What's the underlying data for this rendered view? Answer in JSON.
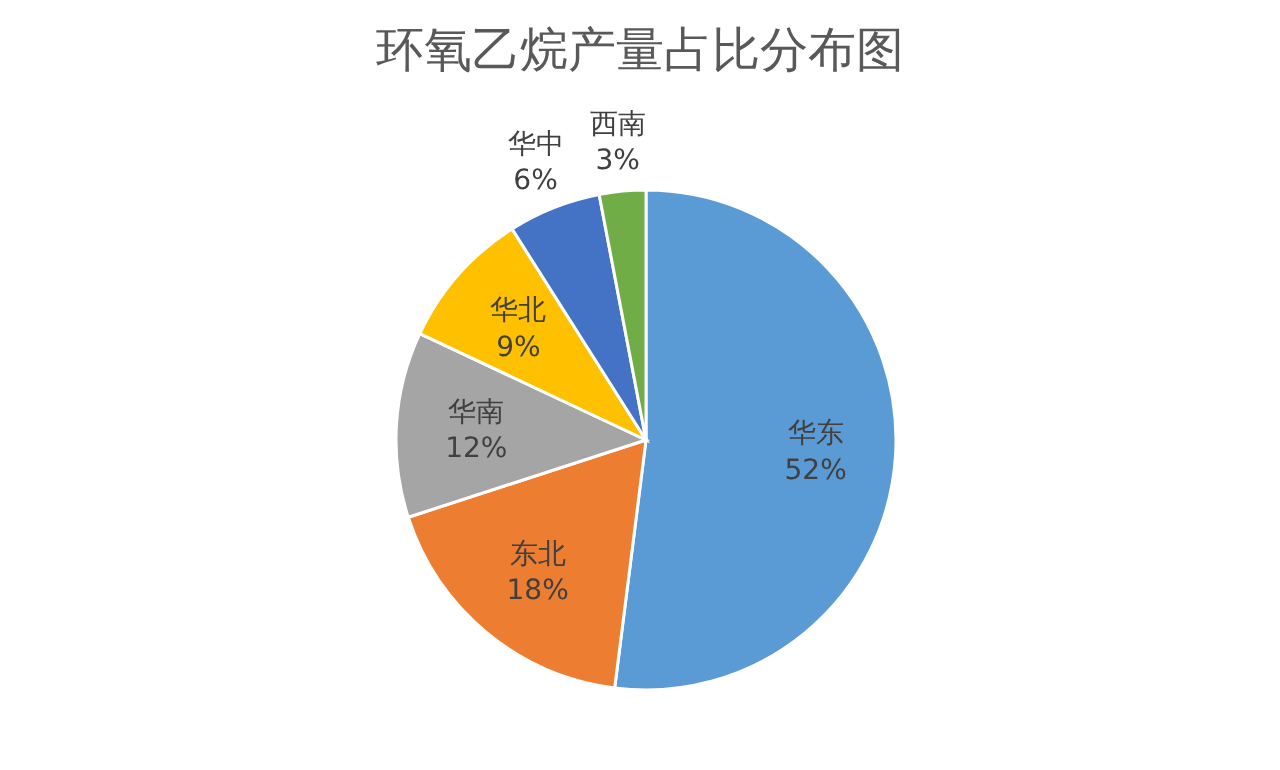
{
  "chart_data": {
    "type": "pie",
    "title": "环氧乙烷产量占比分布图",
    "categories": [
      "华东",
      "东北",
      "华南",
      "华北",
      "华中",
      "西南"
    ],
    "values": [
      52,
      18,
      12,
      9,
      6,
      3
    ],
    "value_labels": [
      "52%",
      "18%",
      "12%",
      "9%",
      "6%",
      "3%"
    ],
    "colors": [
      "#5b9bd5",
      "#ed7d31",
      "#a5a5a5",
      "#ffc000",
      "#4472c4",
      "#70ad47"
    ],
    "legend": false
  }
}
